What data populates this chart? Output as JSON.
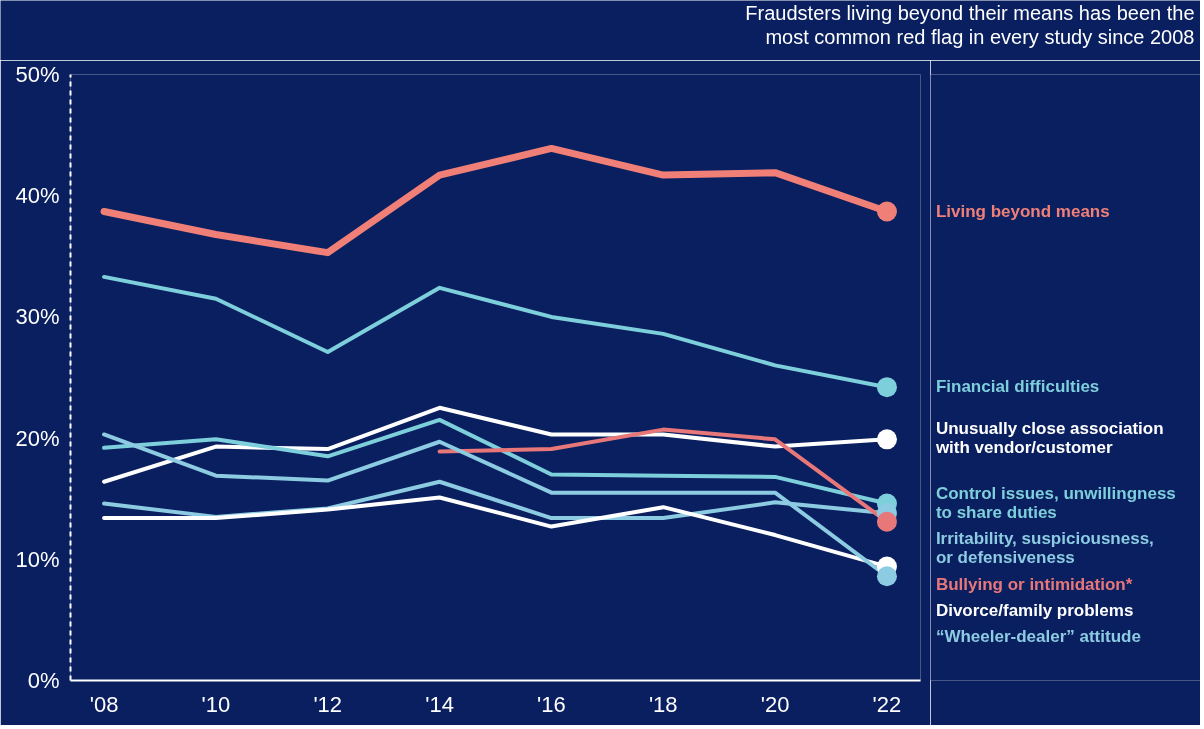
{
  "chart_data": {
    "type": "line",
    "title": "Fraudsters living beyond their means has been the most common red flag in every study since 2008",
    "x": [
      2008,
      2010,
      2012,
      2014,
      2016,
      2018,
      2020,
      2022
    ],
    "xlim": [
      2007.4,
      2022.6
    ],
    "xticks": [
      {
        "value": 2008,
        "label": "'08"
      },
      {
        "value": 2010,
        "label": "'10"
      },
      {
        "value": 2012,
        "label": "'12"
      },
      {
        "value": 2014,
        "label": "'14"
      },
      {
        "value": 2016,
        "label": "'16"
      },
      {
        "value": 2018,
        "label": "'18"
      },
      {
        "value": 2020,
        "label": "'20"
      },
      {
        "value": 2022,
        "label": "'22"
      }
    ],
    "ylim": [
      0,
      50
    ],
    "yticks": [
      {
        "value": 0,
        "label": "0%"
      },
      {
        "value": 10,
        "label": "10%"
      },
      {
        "value": 20,
        "label": "20%"
      },
      {
        "value": 30,
        "label": "30%"
      },
      {
        "value": 40,
        "label": "40%"
      },
      {
        "value": 50,
        "label": "50%"
      }
    ],
    "grid": false,
    "line_style": "solid",
    "series": [
      {
        "name": "Living beyond means",
        "color": "#f08077",
        "values": [
          38.7,
          36.8,
          35.3,
          41.7,
          43.9,
          41.7,
          41.9,
          38.7
        ]
      },
      {
        "name": "Financial difficulties",
        "color": "#7ecfdc",
        "values": [
          33.3,
          31.5,
          27.1,
          32.4,
          30.0,
          28.6,
          26.0,
          24.2
        ]
      },
      {
        "name": "Unusually close association with vendor/customer",
        "color": "#ffffff",
        "values": [
          16.4,
          19.3,
          19.1,
          22.5,
          20.3,
          20.3,
          19.3,
          19.9
        ]
      },
      {
        "name": "Control issues, unwillingness to share duties",
        "color": "#7ecfdc",
        "values": [
          19.2,
          19.9,
          18.5,
          21.5,
          17.0,
          16.9,
          16.8,
          14.6
        ]
      },
      {
        "name": "Irritability, suspiciousness, or defensiveness",
        "color": "#8ccbe2",
        "values": [
          14.6,
          13.5,
          14.2,
          16.4,
          13.4,
          13.4,
          14.7,
          13.8
        ]
      },
      {
        "name": "Bullying or intimidation*",
        "color": "#e8777a",
        "values": [
          null,
          null,
          null,
          18.9,
          19.1,
          20.7,
          19.9,
          13.1
        ]
      },
      {
        "name": "Divorce/family problems",
        "color": "#ffffff",
        "values": [
          13.4,
          13.4,
          14.1,
          15.1,
          12.7,
          14.3,
          12.0,
          9.4
        ]
      },
      {
        "name": "“Wheeler-dealer” attitude",
        "color": "#8ccbe2",
        "values": [
          20.3,
          16.9,
          16.5,
          19.7,
          15.5,
          15.5,
          15.5,
          8.6
        ]
      }
    ]
  }
}
